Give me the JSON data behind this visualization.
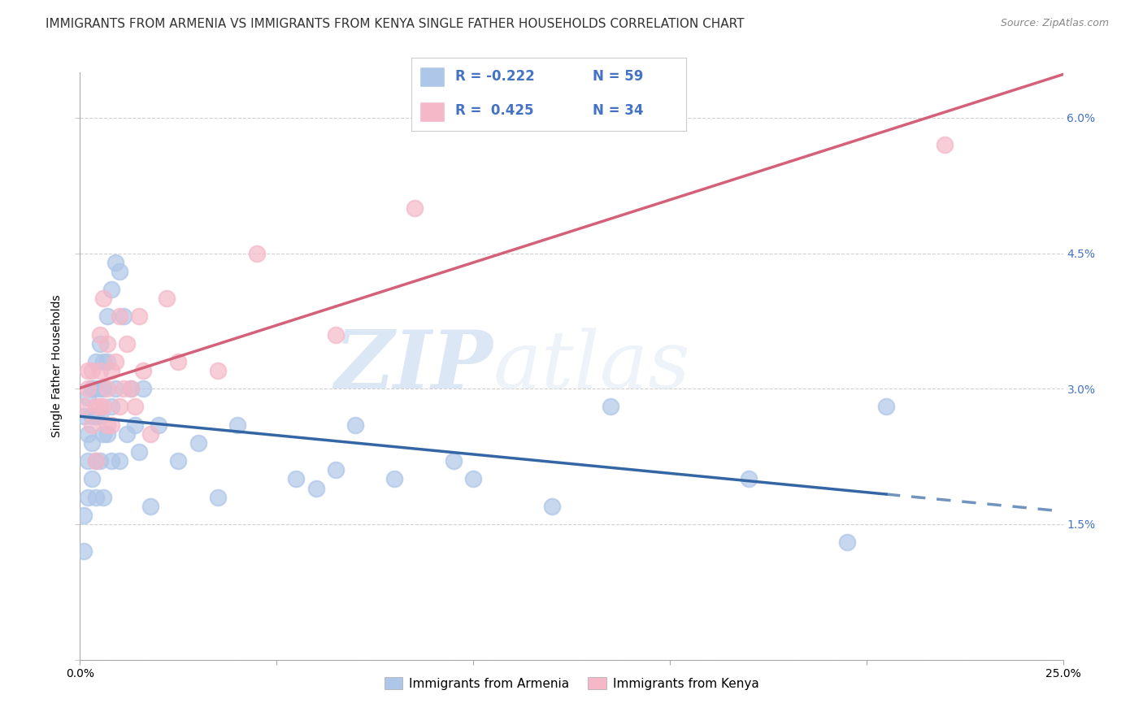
{
  "title": "IMMIGRANTS FROM ARMENIA VS IMMIGRANTS FROM KENYA SINGLE FATHER HOUSEHOLDS CORRELATION CHART",
  "source": "Source: ZipAtlas.com",
  "ylabel": "Single Father Households",
  "xlim": [
    0.0,
    0.25
  ],
  "ylim": [
    0.0,
    0.065
  ],
  "xtick_positions": [
    0.0,
    0.05,
    0.1,
    0.15,
    0.2,
    0.25
  ],
  "xtick_labels": [
    "0.0%",
    "",
    "",
    "",
    "",
    "25.0%"
  ],
  "ytick_positions": [
    0.0,
    0.015,
    0.03,
    0.045,
    0.06
  ],
  "ytick_labels_right": [
    "",
    "1.5%",
    "3.0%",
    "4.5%",
    "6.0%"
  ],
  "legend_r_armenia": "-0.222",
  "legend_n_armenia": "59",
  "legend_r_kenya": " 0.425",
  "legend_n_kenya": "34",
  "legend_label_armenia": "Immigrants from Armenia",
  "legend_label_kenya": "Immigrants from Kenya",
  "armenia_color": "#aec6e8",
  "kenya_color": "#f4b8c8",
  "armenia_line_color": "#3465a4",
  "kenya_line_color": "#d4607a",
  "background_color": "#ffffff",
  "grid_color": "#cccccc",
  "watermark_zip": "ZIP",
  "watermark_atlas": "atlas",
  "armenia_x": [
    0.001,
    0.001,
    0.001,
    0.002,
    0.002,
    0.002,
    0.002,
    0.003,
    0.003,
    0.003,
    0.003,
    0.003,
    0.004,
    0.004,
    0.004,
    0.004,
    0.004,
    0.005,
    0.005,
    0.005,
    0.005,
    0.006,
    0.006,
    0.006,
    0.006,
    0.007,
    0.007,
    0.007,
    0.008,
    0.008,
    0.008,
    0.009,
    0.009,
    0.01,
    0.01,
    0.011,
    0.012,
    0.013,
    0.014,
    0.015,
    0.016,
    0.018,
    0.02,
    0.025,
    0.03,
    0.035,
    0.04,
    0.055,
    0.06,
    0.065,
    0.07,
    0.08,
    0.095,
    0.1,
    0.12,
    0.135,
    0.17,
    0.195,
    0.205
  ],
  "armenia_y": [
    0.027,
    0.016,
    0.012,
    0.029,
    0.025,
    0.022,
    0.018,
    0.03,
    0.027,
    0.024,
    0.03,
    0.02,
    0.033,
    0.03,
    0.027,
    0.022,
    0.018,
    0.035,
    0.03,
    0.027,
    0.022,
    0.033,
    0.03,
    0.025,
    0.018,
    0.038,
    0.033,
    0.025,
    0.041,
    0.028,
    0.022,
    0.044,
    0.03,
    0.043,
    0.022,
    0.038,
    0.025,
    0.03,
    0.026,
    0.023,
    0.03,
    0.017,
    0.026,
    0.022,
    0.024,
    0.018,
    0.026,
    0.02,
    0.019,
    0.021,
    0.026,
    0.02,
    0.022,
    0.02,
    0.017,
    0.028,
    0.02,
    0.013,
    0.028
  ],
  "kenya_x": [
    0.001,
    0.002,
    0.002,
    0.003,
    0.003,
    0.004,
    0.004,
    0.005,
    0.005,
    0.005,
    0.006,
    0.006,
    0.007,
    0.007,
    0.007,
    0.008,
    0.008,
    0.009,
    0.01,
    0.01,
    0.011,
    0.012,
    0.013,
    0.014,
    0.015,
    0.016,
    0.018,
    0.022,
    0.025,
    0.035,
    0.045,
    0.065,
    0.085,
    0.22
  ],
  "kenya_y": [
    0.028,
    0.032,
    0.03,
    0.026,
    0.032,
    0.028,
    0.022,
    0.036,
    0.032,
    0.028,
    0.04,
    0.028,
    0.035,
    0.03,
    0.026,
    0.032,
    0.026,
    0.033,
    0.038,
    0.028,
    0.03,
    0.035,
    0.03,
    0.028,
    0.038,
    0.032,
    0.025,
    0.04,
    0.033,
    0.032,
    0.045,
    0.036,
    0.05,
    0.057
  ],
  "title_fontsize": 11,
  "tick_fontsize": 10,
  "ylabel_fontsize": 10,
  "right_tick_color": "#4472c4"
}
